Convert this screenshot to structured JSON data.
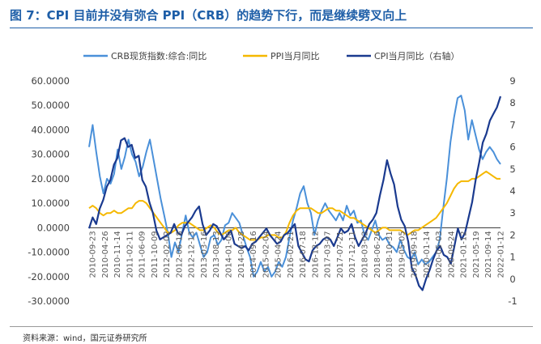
{
  "title": "图 7：CPI 目前并没有弥合 PPI（CRB）的趋势下行，而是继续劈叉向上",
  "source": "资料来源：wind，国元证券研究所",
  "chart_data": {
    "type": "line",
    "title": "图 7：CPI 目前并没有弥合 PPI（CRB）的趋势下行，而是继续劈叉向上",
    "left_axis": {
      "range": [
        -30,
        60
      ],
      "ticks": [
        "60.0000",
        "50.0000",
        "40.0000",
        "30.0000",
        "20.0000",
        "10.0000",
        "0.0000",
        "-10.0000",
        "-20.0000",
        "-30.0000"
      ],
      "tick_values": [
        60,
        50,
        40,
        30,
        20,
        10,
        0,
        -10,
        -20,
        -30
      ]
    },
    "right_axis": {
      "range": [
        -1,
        9
      ],
      "ticks": [
        "9",
        "8",
        "7",
        "6",
        "5",
        "4",
        "3",
        "2",
        "1",
        "0",
        "-1"
      ],
      "tick_values": [
        9,
        8,
        7,
        6,
        5,
        4,
        3,
        2,
        1,
        0,
        -1
      ]
    },
    "x_ticks": [
      "2010-09-23",
      "2010-04-26",
      "2010-11-14",
      "2011-02-11",
      "2011-06-09",
      "2011-10-09",
      "2012-02-02",
      "2012-06-18",
      "2012-12-13",
      "2013-03-16",
      "2013-08-13",
      "2014-01-06",
      "2014-04-28",
      "2014-09-16",
      "2015-02-04",
      "2015-04-24",
      "2016-02-21",
      "2016-07-18",
      "2016-12-12",
      "2017-03-07",
      "2017-07-21",
      "2017-12-11",
      "2018-03-02",
      "2018-06-26",
      "2018-10-31",
      "2019-05-05",
      "2019-09-18",
      "2020-01-14",
      "2020-05-03",
      "2020-09-24",
      "2021-01-12",
      "2021-05-19",
      "2021-09-14",
      "2022-01-12"
    ],
    "legend": [
      "CRB现货指数:综合:同比",
      "PPI当月同比",
      "CPI当月同比（右轴）"
    ],
    "colors": {
      "crb": "#4A90D9",
      "ppi": "#F5B800",
      "cpi": "#1A3A8F"
    },
    "series": [
      {
        "name": "CRB现货指数:综合:同比",
        "axis": "left",
        "values": [
          33,
          42,
          31,
          21,
          14,
          20,
          18,
          22,
          32,
          24,
          29,
          36,
          30,
          27,
          21,
          25,
          31,
          36,
          28,
          20,
          12,
          5,
          -2,
          -12,
          -6,
          -10,
          -2,
          5,
          -2,
          -4,
          -2,
          -7,
          -12,
          -10,
          -4,
          -3,
          -7,
          -5,
          1,
          2,
          6,
          4,
          2,
          -3,
          -8,
          -12,
          -20,
          -18,
          -14,
          -18,
          -16,
          -20,
          -18,
          -14,
          -16,
          -12,
          -4,
          3,
          8,
          14,
          17,
          10,
          6,
          -3,
          3,
          7,
          10,
          7,
          5,
          3,
          6,
          3,
          9,
          5,
          7,
          2,
          3,
          -3,
          -5,
          -1,
          3,
          -3,
          -5,
          -4,
          -7,
          -8,
          -10,
          -5,
          -9,
          -12,
          -13,
          -10,
          -15,
          -13,
          -15,
          -14,
          -12,
          -10,
          -5,
          8,
          20,
          35,
          45,
          53,
          54,
          48,
          36,
          44,
          38,
          32,
          28,
          31,
          33,
          31,
          28,
          26
        ]
      },
      {
        "name": "PPI当月同比",
        "axis": "left",
        "values": [
          8,
          9,
          8,
          6,
          5,
          6,
          6,
          7,
          6,
          6,
          7,
          8,
          8,
          10,
          11,
          11,
          10,
          8,
          6,
          4,
          2,
          0,
          -2,
          -2,
          -1,
          1,
          2,
          2,
          2,
          1,
          0,
          -1,
          -1,
          0,
          1,
          0,
          -2,
          -3,
          -2,
          -1,
          -1,
          0,
          -2,
          -3,
          -4,
          -5,
          -5,
          -5,
          -4,
          -4,
          -3,
          -3,
          -3,
          -4,
          -4,
          -2,
          2,
          5,
          7,
          8,
          8,
          8,
          8,
          7,
          6,
          6,
          7,
          8,
          8,
          7,
          7,
          6,
          5,
          4,
          4,
          3,
          2,
          1,
          0,
          -1,
          -2,
          -1,
          0,
          0,
          -1,
          -1,
          -1,
          -1,
          -2,
          -3,
          -2,
          -1,
          -1,
          0,
          1,
          2,
          3,
          4,
          6,
          8,
          10,
          13,
          16,
          18,
          19,
          19,
          19,
          20,
          20,
          21,
          22,
          23,
          22,
          21,
          20,
          20
        ]
      },
      {
        "name": "CPI当月同比（右轴）",
        "axis": "right",
        "values": [
          2.3,
          2.8,
          2.5,
          3.2,
          3.6,
          4.2,
          4.5,
          5.2,
          5.5,
          6.3,
          6.4,
          6.0,
          6.1,
          5.5,
          5.6,
          4.5,
          4.2,
          3.5,
          3.0,
          2.2,
          1.8,
          1.9,
          2.0,
          2.1,
          2.5,
          2.1,
          2.0,
          2.4,
          2.6,
          2.8,
          3.1,
          3.3,
          2.5,
          2.0,
          2.2,
          2.5,
          2.4,
          2.1,
          1.8,
          2.0,
          2.2,
          1.6,
          1.5,
          1.4,
          1.5,
          1.3,
          1.6,
          1.7,
          1.9,
          2.1,
          2.3,
          2.0,
          1.8,
          1.6,
          1.7,
          2.0,
          2.1,
          2.3,
          2.5,
          1.5,
          1.2,
          0.9,
          0.8,
          1.3,
          1.5,
          1.6,
          1.8,
          1.9,
          1.8,
          1.5,
          1.9,
          2.3,
          2.1,
          2.2,
          2.5,
          1.9,
          1.5,
          1.8,
          2.1,
          2.5,
          2.7,
          3.0,
          3.8,
          4.5,
          5.4,
          4.8,
          4.3,
          3.3,
          2.7,
          2.4,
          1.7,
          0.5,
          0.2,
          -0.3,
          -0.5,
          0.0,
          0.4,
          0.9,
          1.3,
          1.5,
          1.1,
          1.0,
          0.7,
          1.5,
          2.3,
          1.8,
          2.1,
          2.8,
          3.5,
          4.5,
          5.3,
          6.2,
          6.6,
          7.2,
          7.5,
          7.8,
          8.3
        ]
      }
    ]
  }
}
